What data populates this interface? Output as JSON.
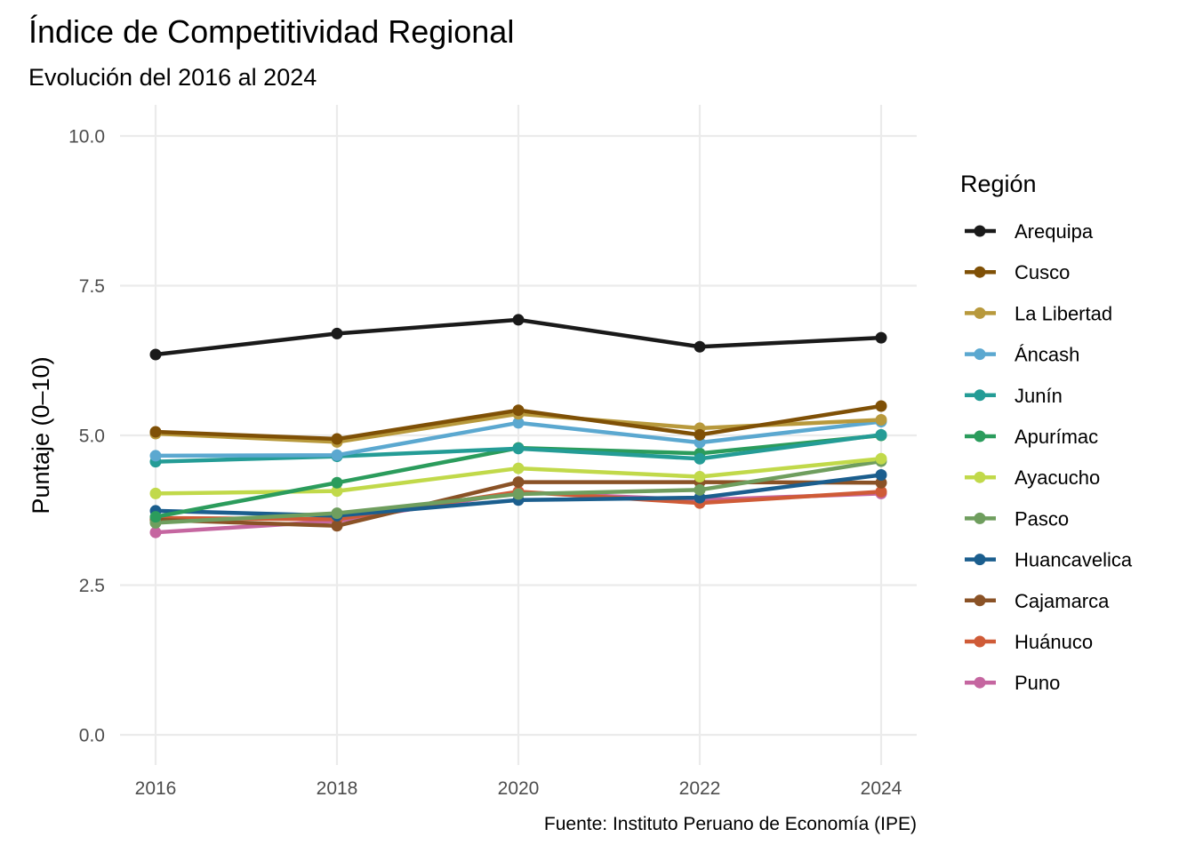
{
  "chart_data": {
    "type": "line",
    "title": "Índice de Competitividad Regional",
    "subtitle": "Evolución del 2016 al 2024",
    "xlabel": "",
    "ylabel": "Puntaje (0–10)",
    "caption": "Fuente: Instituto Peruano de Economía (IPE)",
    "legend_title": "Región",
    "legend_position": "right",
    "grid": true,
    "x": [
      2016,
      2018,
      2020,
      2022,
      2024
    ],
    "xlim": [
      2016,
      2024
    ],
    "ylim": [
      0,
      10
    ],
    "x_ticks": [
      "2016",
      "2018",
      "2020",
      "2022",
      "2024"
    ],
    "y_ticks": [
      "0.0",
      "2.5",
      "5.0",
      "7.5",
      "10.0"
    ],
    "series": [
      {
        "name": "Arequipa",
        "color": "#1a1a1a",
        "values": [
          6.35,
          6.7,
          6.93,
          6.48,
          6.63
        ]
      },
      {
        "name": "Cusco",
        "color": "#7f5006",
        "values": [
          5.06,
          4.94,
          5.42,
          5.01,
          5.49
        ]
      },
      {
        "name": "La Libertad",
        "color": "#b8993c",
        "values": [
          5.03,
          4.89,
          5.36,
          5.12,
          5.26
        ]
      },
      {
        "name": "Áncash",
        "color": "#5ba8d0",
        "values": [
          4.66,
          4.67,
          5.21,
          4.88,
          5.23
        ]
      },
      {
        "name": "Junín",
        "color": "#249c96",
        "values": [
          4.56,
          4.65,
          4.78,
          4.61,
          5.01
        ]
      },
      {
        "name": "Apurímac",
        "color": "#2b9c5c",
        "values": [
          3.64,
          4.21,
          4.79,
          4.7,
          5.0
        ]
      },
      {
        "name": "Ayacucho",
        "color": "#c1d94a",
        "values": [
          4.03,
          4.07,
          4.45,
          4.31,
          4.61
        ]
      },
      {
        "name": "Pasco",
        "color": "#6f9e5e",
        "values": [
          3.54,
          3.7,
          4.02,
          4.09,
          4.57
        ]
      },
      {
        "name": "Huancavelica",
        "color": "#1b5e8e",
        "values": [
          3.74,
          3.66,
          3.92,
          3.96,
          4.34
        ]
      },
      {
        "name": "Cajamarca",
        "color": "#8a5226",
        "values": [
          3.59,
          3.49,
          4.22,
          4.22,
          4.21
        ]
      },
      {
        "name": "Huánuco",
        "color": "#cf5b37",
        "values": [
          3.62,
          3.6,
          4.06,
          3.87,
          4.06
        ]
      },
      {
        "name": "Puno",
        "color": "#c566a0",
        "values": [
          3.38,
          3.57,
          4.05,
          3.92,
          4.03
        ]
      }
    ]
  }
}
